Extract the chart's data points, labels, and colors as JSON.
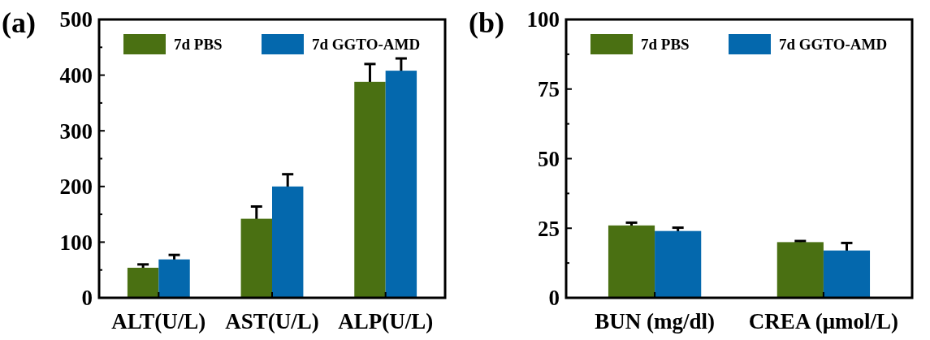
{
  "chart_data": [
    {
      "type": "bar",
      "title": "(a)",
      "categories": [
        "ALT(U/L)",
        "AST(U/L)",
        "ALP(U/L)"
      ],
      "series": [
        {
          "name": "7d PBS",
          "color": "#4a7012",
          "values": [
            54,
            142,
            388
          ],
          "errors": [
            6,
            22,
            32
          ]
        },
        {
          "name": "7d GGTO-AMD",
          "color": "#0468ad",
          "values": [
            69,
            200,
            408
          ],
          "errors": [
            8,
            22,
            22
          ]
        }
      ],
      "ylim": [
        0,
        500
      ],
      "yticks": [
        0,
        {
          "value": 50,
          "label": null
        },
        100,
        {
          "value": 150,
          "label": null
        },
        200,
        {
          "value": 250,
          "label": null
        },
        300,
        {
          "value": 350,
          "label": null
        },
        400,
        {
          "value": 450,
          "label": null
        },
        500
      ],
      "legend": "top",
      "grid": false
    },
    {
      "type": "bar",
      "title": "(b)",
      "categories": [
        "BUN (mg/dl)",
        "CREA (μmol/L)"
      ],
      "series": [
        {
          "name": "7d PBS",
          "color": "#4a7012",
          "values": [
            26,
            20
          ],
          "errors": [
            1,
            0.4
          ]
        },
        {
          "name": "7d GGTO-AMD",
          "color": "#0468ad",
          "values": [
            24,
            17
          ],
          "errors": [
            1.2,
            2.7
          ]
        }
      ],
      "ylim": [
        0,
        100
      ],
      "yticks": [
        0,
        {
          "value": 12.5,
          "label": null
        },
        25,
        {
          "value": 37.5,
          "label": null
        },
        50,
        {
          "value": 62.5,
          "label": null
        },
        75,
        {
          "value": 87.5,
          "label": null
        },
        100
      ],
      "legend": "top",
      "grid": false
    }
  ]
}
